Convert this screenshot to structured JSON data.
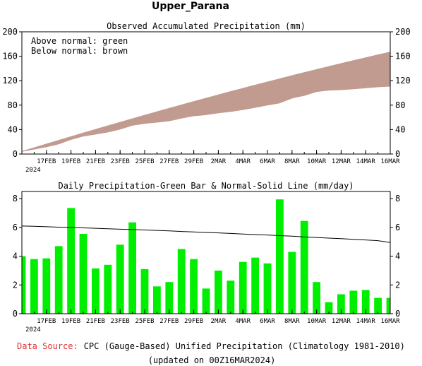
{
  "page_title": "Upper_Parana",
  "footer": {
    "source_label": "Data Source:",
    "source_text": "CPC (Gauge-Based) Unified Precipitation (Climatology 1981-2010)",
    "updated": "(updated on 00Z16MAR2024)"
  },
  "colors": {
    "accum_band": "#c19a90",
    "daily_bar": "#00ee00",
    "normal_line": "#000000",
    "source_label": "#e03030"
  },
  "chart_data": [
    {
      "type": "area",
      "title": "Observed Accumulated Precipitation (mm)",
      "legend_lines": [
        "Above normal: green",
        "Below normal: brown"
      ],
      "legend_placement": "top-left",
      "x_ticks": [
        "17FEB",
        "19FEB",
        "21FEB",
        "23FEB",
        "25FEB",
        "27FEB",
        "29FEB",
        "2MAR",
        "4MAR",
        "6MAR",
        "8MAR",
        "10MAR",
        "12MAR",
        "14MAR",
        "16MAR"
      ],
      "x_year_label": "2024",
      "ylim": [
        0,
        200
      ],
      "y_ticks": [
        0,
        40,
        80,
        120,
        160,
        200
      ],
      "dates": [
        "15FEB",
        "16FEB",
        "17FEB",
        "18FEB",
        "19FEB",
        "20FEB",
        "21FEB",
        "22FEB",
        "23FEB",
        "24FEB",
        "25FEB",
        "26FEB",
        "27FEB",
        "28FEB",
        "29FEB",
        "1MAR",
        "2MAR",
        "3MAR",
        "4MAR",
        "5MAR",
        "6MAR",
        "7MAR",
        "8MAR",
        "9MAR",
        "10MAR",
        "11MAR",
        "12MAR",
        "13MAR",
        "14MAR",
        "15MAR",
        "16MAR"
      ],
      "series": [
        {
          "name": "Normal",
          "values": [
            4.4,
            10.5,
            16.6,
            22.6,
            28.6,
            34.6,
            40.5,
            46.3,
            52.1,
            57.9,
            63.7,
            69.4,
            75.0,
            80.6,
            86.1,
            91.6,
            97.0,
            102.4,
            107.7,
            113.0,
            118.2,
            123.3,
            128.5,
            133.5,
            138.5,
            143.4,
            148.3,
            153.1,
            157.8,
            162.5,
            167.1
          ]
        },
        {
          "name": "Observed",
          "values": [
            4.0,
            7.8,
            11.6,
            16.3,
            23.6,
            29.1,
            32.3,
            35.7,
            40.5,
            46.8,
            49.9,
            51.8,
            54.0,
            58.5,
            62.3,
            64.1,
            67.1,
            69.4,
            72.4,
            76.0,
            79.9,
            83.4,
            91.3,
            95.6,
            102.0,
            104.2,
            105.0,
            106.4,
            108.0,
            109.7,
            110.8
          ]
        }
      ]
    },
    {
      "type": "bar",
      "title": "Daily Precipitation-Green Bar & Normal-Solid Line (mm/day)",
      "x_ticks": [
        "17FEB",
        "19FEB",
        "21FEB",
        "23FEB",
        "25FEB",
        "27FEB",
        "29FEB",
        "2MAR",
        "4MAR",
        "6MAR",
        "8MAR",
        "10MAR",
        "12MAR",
        "14MAR",
        "16MAR"
      ],
      "x_year_label": "2024",
      "ylim": [
        0,
        8.5
      ],
      "y_ticks": [
        0,
        2,
        4,
        6,
        8
      ],
      "categories": [
        "15FEB",
        "16FEB",
        "17FEB",
        "18FEB",
        "19FEB",
        "20FEB",
        "21FEB",
        "22FEB",
        "23FEB",
        "24FEB",
        "25FEB",
        "26FEB",
        "27FEB",
        "28FEB",
        "29FEB",
        "1MAR",
        "2MAR",
        "3MAR",
        "4MAR",
        "5MAR",
        "6MAR",
        "7MAR",
        "8MAR",
        "9MAR",
        "10MAR",
        "11MAR",
        "12MAR",
        "13MAR",
        "14MAR",
        "15MAR",
        "16MAR"
      ],
      "series": [
        {
          "name": "Daily Precipitation",
          "values": [
            4.0,
            3.8,
            3.85,
            4.7,
            7.35,
            5.55,
            3.15,
            3.4,
            4.8,
            6.35,
            3.1,
            1.9,
            2.2,
            4.5,
            3.8,
            1.75,
            3.0,
            2.3,
            3.6,
            3.9,
            3.5,
            7.95,
            4.3,
            6.45,
            2.2,
            0.8,
            1.35,
            1.6,
            1.65,
            1.1,
            1.1
          ]
        },
        {
          "name": "Normal",
          "values": [
            6.1,
            6.08,
            6.05,
            6.02,
            6.0,
            5.97,
            5.94,
            5.91,
            5.88,
            5.85,
            5.82,
            5.79,
            5.76,
            5.72,
            5.69,
            5.65,
            5.62,
            5.58,
            5.54,
            5.5,
            5.47,
            5.43,
            5.39,
            5.34,
            5.3,
            5.26,
            5.22,
            5.17,
            5.13,
            5.08,
            4.95
          ]
        }
      ]
    }
  ]
}
